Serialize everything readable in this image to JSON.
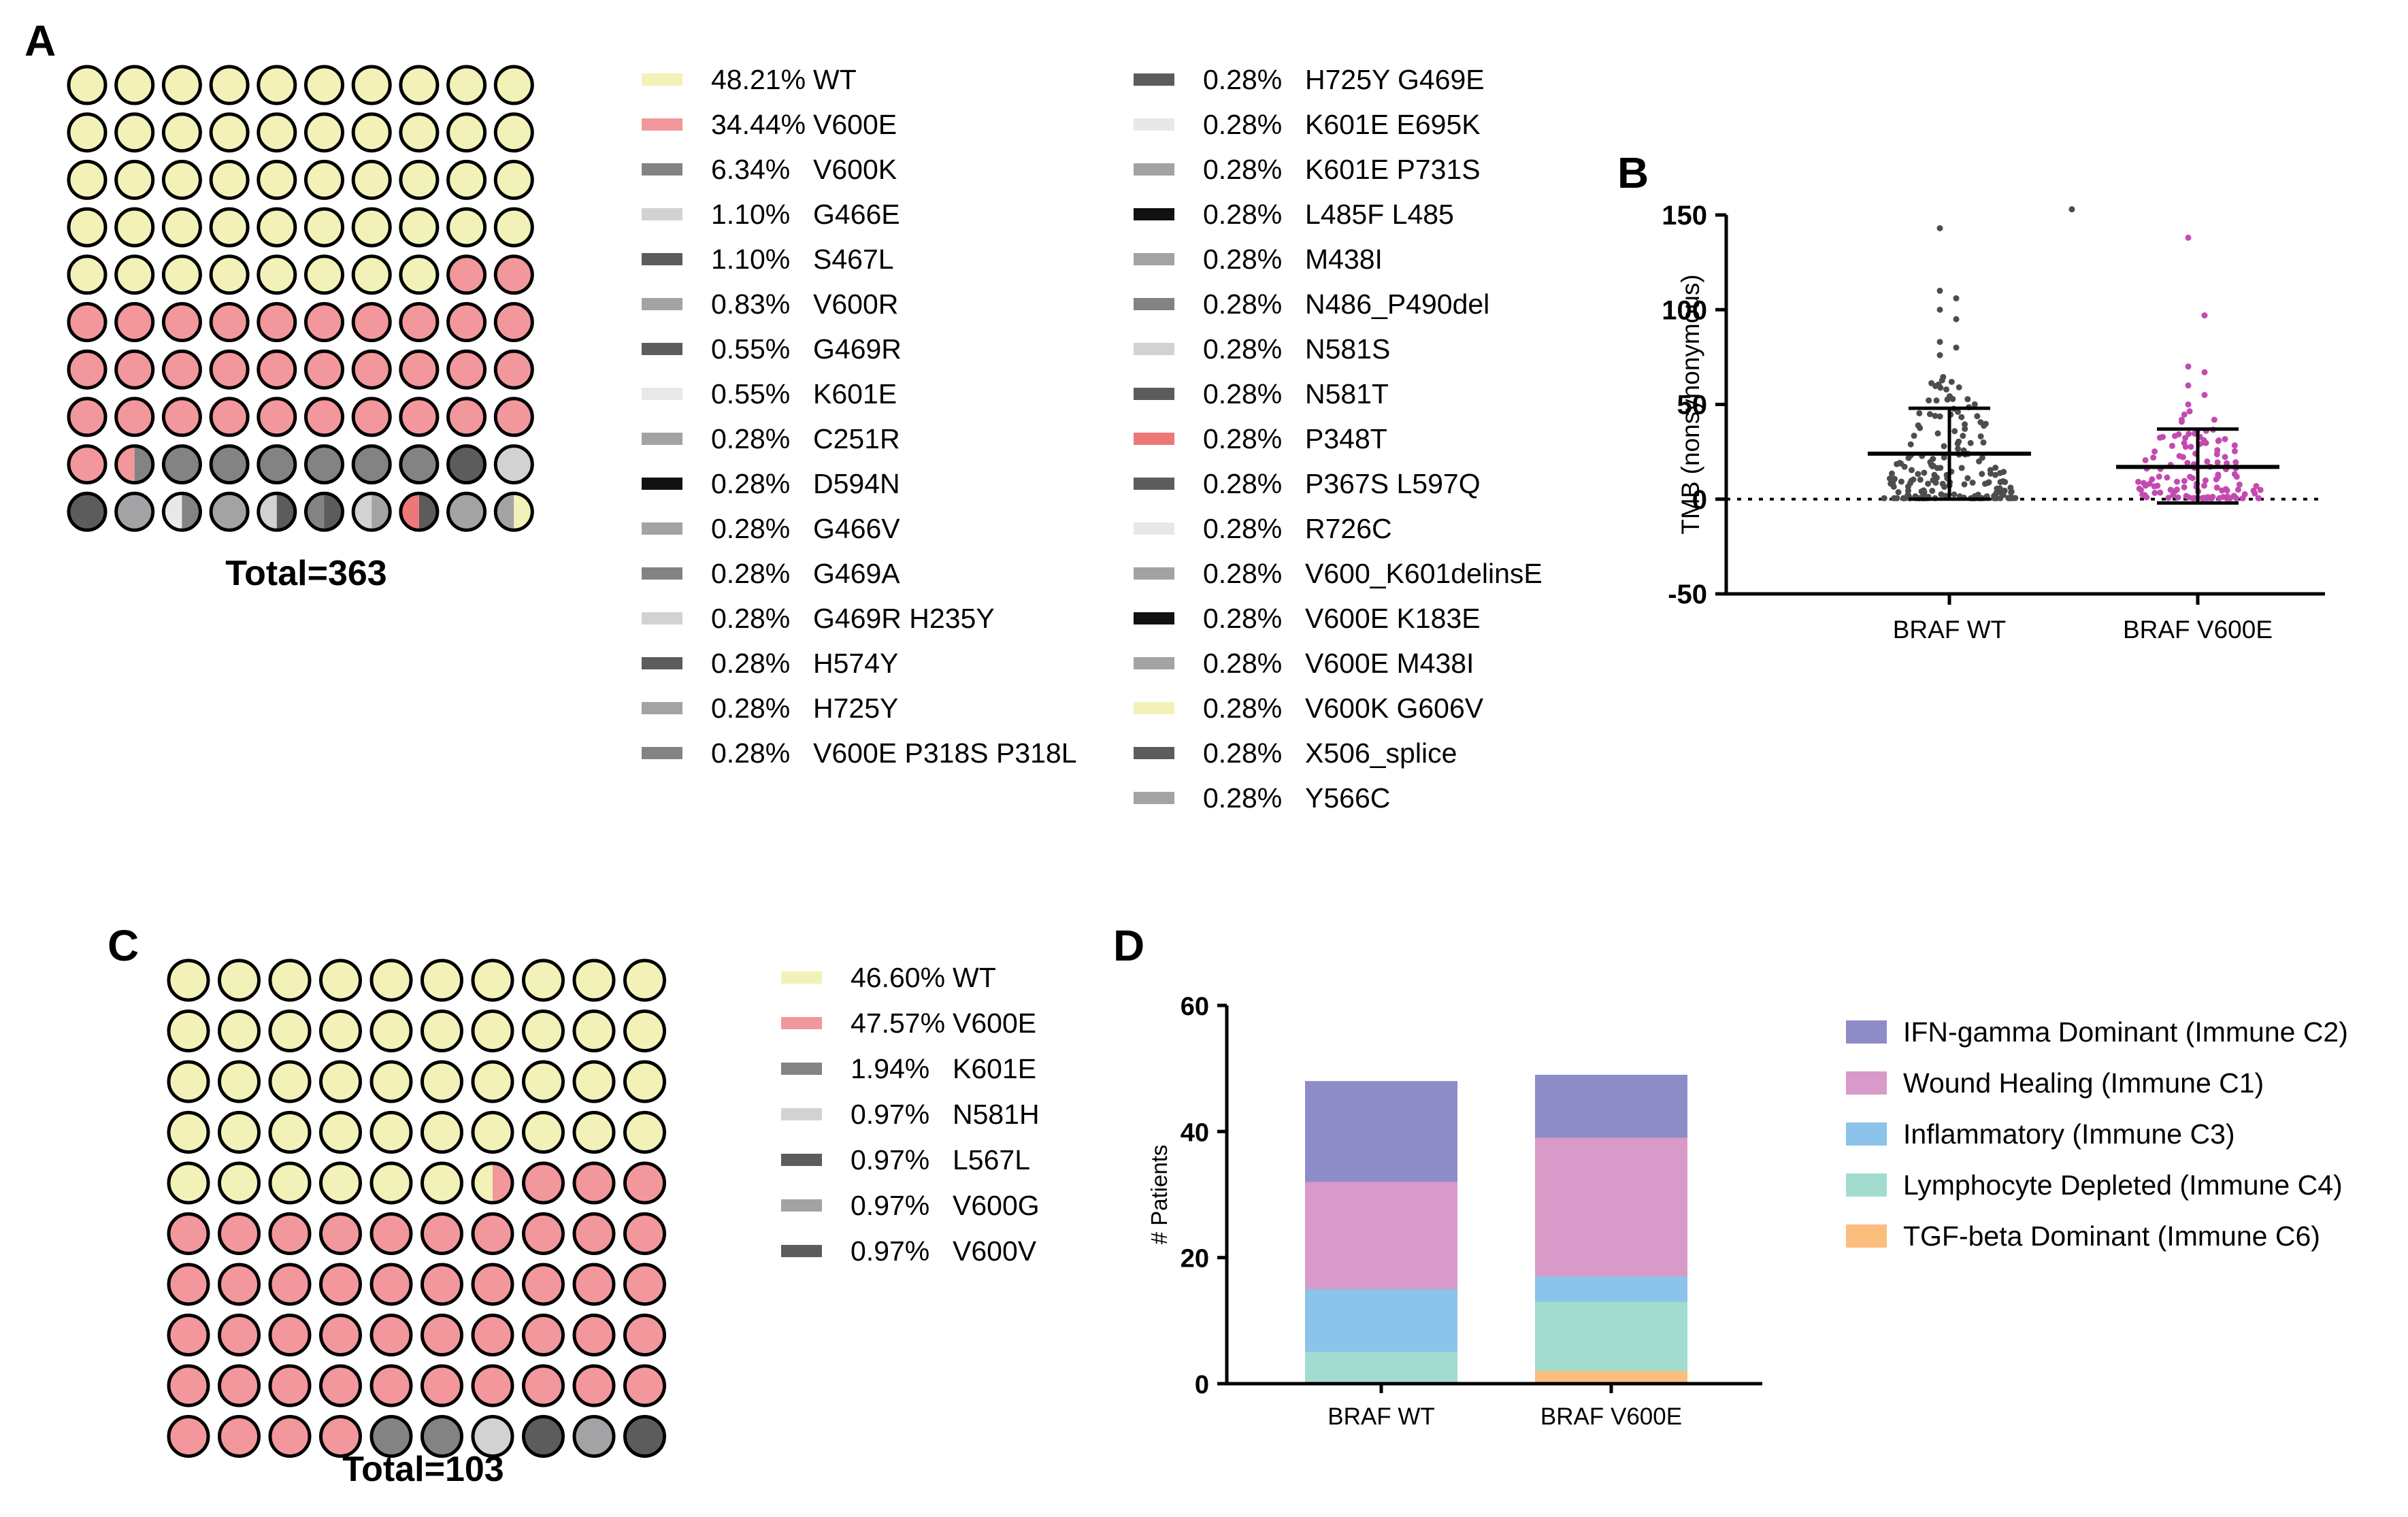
{
  "panels": {
    "a": "A",
    "b": "B",
    "c": "C",
    "d": "D"
  },
  "colors": {
    "wt": "#F2F2B8",
    "v600e": "#F2979C",
    "g1": "#E8E8E8",
    "g2": "#D2D2D2",
    "g3": "#A3A3A6",
    "g4": "#838383",
    "g5": "#5C5C5C",
    "g6": "#111111",
    "red": "#EE7777"
  },
  "chart_data": [
    {
      "id": "A",
      "type": "waffle",
      "total_label": "Total=363",
      "cells": [
        "WT",
        "WT",
        "WT",
        "WT",
        "WT",
        "WT",
        "WT",
        "WT",
        "WT",
        "WT",
        "WT",
        "WT",
        "WT",
        "WT",
        "WT",
        "WT",
        "WT",
        "WT",
        "WT",
        "WT",
        "WT",
        "WT",
        "WT",
        "WT",
        "WT",
        "WT",
        "WT",
        "WT",
        "WT",
        "WT",
        "WT",
        "WT",
        "WT",
        "WT",
        "WT",
        "WT",
        "WT",
        "WT",
        "WT",
        "WT",
        "WT",
        "WT",
        "WT",
        "WT",
        "WT",
        "WT",
        "WT",
        "WT",
        "V600E",
        "V600E",
        "V600E",
        "V600E",
        "V600E",
        "V600E",
        "V600E",
        "V600E",
        "V600E",
        "V600E",
        "V600E",
        "V600E",
        "V600E",
        "V600E",
        "V600E",
        "V600E",
        "V600E",
        "V600E",
        "V600E",
        "V600E",
        "V600E",
        "V600E",
        "V600E",
        "V600E",
        "V600E",
        "V600E",
        "V600E",
        "V600E",
        "V600E",
        "V600E",
        "V600E",
        "V600E",
        "V600E",
        [
          "V600E",
          "g4"
        ],
        "g4",
        "g4",
        "g4",
        "g4",
        "g4",
        "g4",
        "g5",
        "g2",
        "g5",
        "g3",
        [
          "g1",
          "g4"
        ],
        "g3",
        [
          "g2",
          "g5"
        ],
        [
          "g4",
          "g5"
        ],
        [
          "g2",
          "g3"
        ],
        [
          "red",
          "g5"
        ],
        "g3",
        [
          "g3",
          "WT"
        ]
      ],
      "legend": [
        {
          "pct": "48.21%",
          "label": "WT",
          "color": "wt"
        },
        {
          "pct": "34.44%",
          "label": "V600E",
          "color": "v600e"
        },
        {
          "pct": "6.34%",
          "label": "V600K",
          "color": "g4"
        },
        {
          "pct": "1.10%",
          "label": "G466E",
          "color": "g2"
        },
        {
          "pct": "1.10%",
          "label": "S467L",
          "color": "g5"
        },
        {
          "pct": "0.83%",
          "label": "V600R",
          "color": "g3"
        },
        {
          "pct": "0.55%",
          "label": "G469R",
          "color": "g5"
        },
        {
          "pct": "0.55%",
          "label": "K601E",
          "color": "g1"
        },
        {
          "pct": "0.28%",
          "label": "C251R",
          "color": "g3"
        },
        {
          "pct": "0.28%",
          "label": "D594N",
          "color": "g6"
        },
        {
          "pct": "0.28%",
          "label": "G466V",
          "color": "g3"
        },
        {
          "pct": "0.28%",
          "label": "G469A",
          "color": "g4"
        },
        {
          "pct": "0.28%",
          "label": "G469R H235Y",
          "color": "g2"
        },
        {
          "pct": "0.28%",
          "label": "H574Y",
          "color": "g5"
        },
        {
          "pct": "0.28%",
          "label": "H725Y",
          "color": "g3"
        },
        {
          "pct": "0.28%",
          "label": "V600E P318S P318L",
          "color": "g4"
        },
        {
          "pct": "0.28%",
          "label": "H725Y G469E",
          "color": "g5"
        },
        {
          "pct": "0.28%",
          "label": "K601E E695K",
          "color": "g1"
        },
        {
          "pct": "0.28%",
          "label": "K601E P731S",
          "color": "g3"
        },
        {
          "pct": "0.28%",
          "label": "L485F L485",
          "color": "g6"
        },
        {
          "pct": "0.28%",
          "label": "M438I",
          "color": "g3"
        },
        {
          "pct": "0.28%",
          "label": "N486_P490del",
          "color": "g4"
        },
        {
          "pct": "0.28%",
          "label": "N581S",
          "color": "g2"
        },
        {
          "pct": "0.28%",
          "label": "N581T",
          "color": "g5"
        },
        {
          "pct": "0.28%",
          "label": "P348T",
          "color": "red"
        },
        {
          "pct": "0.28%",
          "label": "P367S L597Q",
          "color": "g5"
        },
        {
          "pct": "0.28%",
          "label": "R726C",
          "color": "g1"
        },
        {
          "pct": "0.28%",
          "label": "V600_K601delinsE",
          "color": "g3"
        },
        {
          "pct": "0.28%",
          "label": "V600E K183E",
          "color": "g6"
        },
        {
          "pct": "0.28%",
          "label": "V600E M438I",
          "color": "g3"
        },
        {
          "pct": "0.28%",
          "label": "V600K G606V",
          "color": "wt"
        },
        {
          "pct": "0.28%",
          "label": "X506_splice",
          "color": "g5"
        },
        {
          "pct": "0.28%",
          "label": "Y566C",
          "color": "g3"
        }
      ]
    },
    {
      "id": "B",
      "type": "scatter",
      "ylabel": "TMB (nonsynonymous)",
      "categories": [
        "BRAF WT",
        "BRAF V600E"
      ],
      "ylim": [
        -50,
        150
      ],
      "yticks": [
        150,
        100,
        50,
        0,
        -50
      ],
      "reference_line": 0,
      "series": [
        {
          "color": "#4d4d4d",
          "mean": 24,
          "sd_high": 48,
          "sd_low": 0,
          "n": 175,
          "outliers": [
            143,
            153,
            110,
            106,
            100,
            95,
            83,
            80,
            76
          ]
        },
        {
          "color": "#c34bb0",
          "mean": 17,
          "sd_high": 37,
          "sd_low": -2,
          "n": 125,
          "outliers": [
            138,
            97,
            70,
            67,
            60,
            55,
            50
          ]
        }
      ]
    },
    {
      "id": "C",
      "type": "waffle",
      "total_label": "Total=103",
      "cells": [
        "WT",
        "WT",
        "WT",
        "WT",
        "WT",
        "WT",
        "WT",
        "WT",
        "WT",
        "WT",
        "WT",
        "WT",
        "WT",
        "WT",
        "WT",
        "WT",
        "WT",
        "WT",
        "WT",
        "WT",
        "WT",
        "WT",
        "WT",
        "WT",
        "WT",
        "WT",
        "WT",
        "WT",
        "WT",
        "WT",
        "WT",
        "WT",
        "WT",
        "WT",
        "WT",
        "WT",
        "WT",
        "WT",
        "WT",
        "WT",
        "WT",
        "WT",
        "WT",
        "WT",
        "WT",
        "WT",
        [
          "WT",
          "V600E"
        ],
        "V600E",
        "V600E",
        "V600E",
        "V600E",
        "V600E",
        "V600E",
        "V600E",
        "V600E",
        "V600E",
        "V600E",
        "V600E",
        "V600E",
        "V600E",
        "V600E",
        "V600E",
        "V600E",
        "V600E",
        "V600E",
        "V600E",
        "V600E",
        "V600E",
        "V600E",
        "V600E",
        "V600E",
        "V600E",
        "V600E",
        "V600E",
        "V600E",
        "V600E",
        "V600E",
        "V600E",
        "V600E",
        "V600E",
        "V600E",
        "V600E",
        "V600E",
        "V600E",
        "V600E",
        "V600E",
        "V600E",
        "V600E",
        "V600E",
        "V600E",
        "V600E",
        "V600E",
        "V600E",
        "V600E",
        "g4",
        "g4",
        "g2",
        "g5",
        "g3",
        "g5"
      ],
      "legend": [
        {
          "pct": "46.60%",
          "label": "WT",
          "color": "wt"
        },
        {
          "pct": "47.57%",
          "label": "V600E",
          "color": "v600e"
        },
        {
          "pct": "1.94%",
          "label": "K601E",
          "color": "g4"
        },
        {
          "pct": "0.97%",
          "label": "N581H",
          "color": "g2"
        },
        {
          "pct": "0.97%",
          "label": "L567L",
          "color": "g5"
        },
        {
          "pct": "0.97%",
          "label": "V600G",
          "color": "g3"
        },
        {
          "pct": "0.97%",
          "label": "V600V",
          "color": "g5"
        }
      ]
    },
    {
      "id": "D",
      "type": "bar",
      "stacked": true,
      "ylabel": "# Patients",
      "categories": [
        "BRAF WT",
        "BRAF V600E"
      ],
      "ylim": [
        0,
        60
      ],
      "yticks": [
        60,
        40,
        20,
        0
      ],
      "series": [
        {
          "name": "TGF-beta Dominant (Immune C6)",
          "color": "#FBBE7D",
          "values": [
            0,
            2
          ]
        },
        {
          "name": "Lymphocyte Depleted (Immune C4)",
          "color": "#A2DCCF",
          "values": [
            5,
            11
          ]
        },
        {
          "name": "Inflammatory (Immune C3)",
          "color": "#8CC3EA",
          "values": [
            10,
            4
          ]
        },
        {
          "name": "Wound Healing (Immune C1)",
          "color": "#D89AC8",
          "values": [
            17,
            22
          ]
        },
        {
          "name": "IFN-gamma Dominant (Immune C2)",
          "color": "#8E8CC8",
          "values": [
            16,
            10
          ]
        }
      ],
      "legend_order": [
        "IFN-gamma Dominant (Immune C2)",
        "Wound Healing (Immune C1)",
        "Inflammatory (Immune C3)",
        "Lymphocyte Depleted (Immune C4)",
        "TGF-beta Dominant (Immune C6)"
      ]
    }
  ]
}
